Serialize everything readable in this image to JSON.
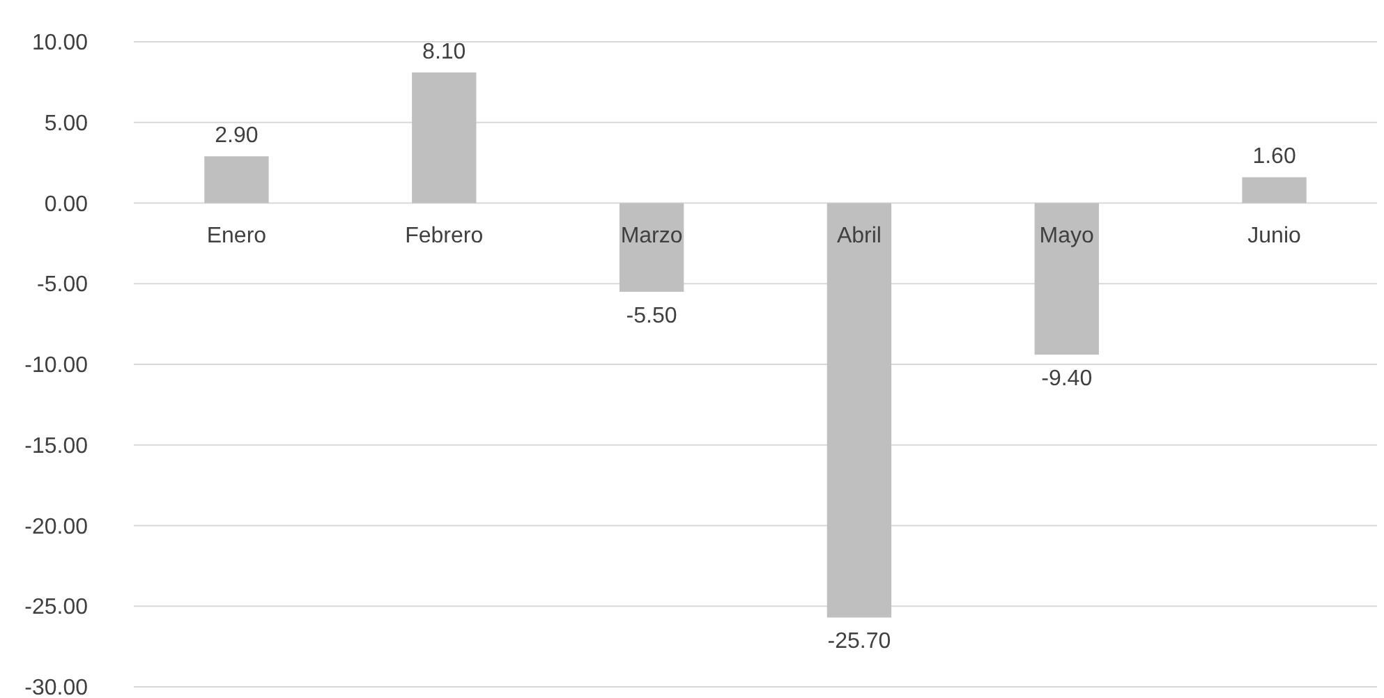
{
  "chart_data": {
    "type": "bar",
    "categories": [
      "Enero",
      "Febrero",
      "Marzo",
      "Abril",
      "Mayo",
      "Junio"
    ],
    "values": [
      2.9,
      8.1,
      -5.5,
      -25.7,
      -9.4,
      1.6
    ],
    "value_labels": [
      "2.90",
      "8.10",
      "-5.50",
      "-25.70",
      "-9.40",
      "1.60"
    ],
    "color": "#bfbfbf",
    "ylim": [
      -30,
      10
    ],
    "yticks": [
      {
        "value": -30,
        "label": "-30.00"
      },
      {
        "value": -25,
        "label": "-25.00"
      },
      {
        "value": -20,
        "label": "-20.00"
      },
      {
        "value": -15,
        "label": "-15.00"
      },
      {
        "value": -10,
        "label": "-10.00"
      },
      {
        "value": -5,
        "label": "-5.00"
      },
      {
        "value": 0,
        "label": "0.00"
      },
      {
        "value": 5,
        "label": "5.00"
      },
      {
        "value": 10,
        "label": "10.00"
      }
    ],
    "grid": "y"
  }
}
